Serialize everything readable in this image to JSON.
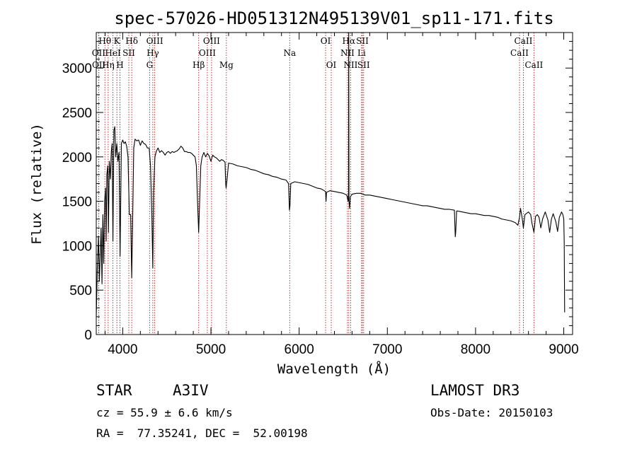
{
  "chart_data": {
    "type": "line",
    "title": "spec-57026-HD051312N495139V01_sp11-171.fits",
    "xlabel": "Wavelength (Å)",
    "ylabel": "Flux (relative)",
    "xlim": [
      3700,
      9100
    ],
    "ylim": [
      0,
      3400
    ],
    "xticks": [
      4000,
      5000,
      6000,
      7000,
      8000,
      9000
    ],
    "xtick_labels": [
      "4000",
      "5000",
      "6000",
      "7000",
      "8000",
      "9000"
    ],
    "yticks": [
      0,
      500,
      1000,
      1500,
      2000,
      2500,
      3000
    ],
    "ytick_labels": [
      "0",
      "500",
      "1000",
      "1500",
      "2000",
      "2500",
      "3000"
    ],
    "x_minor_step": 200,
    "y_minor_step": 100,
    "line_color": "#000000",
    "marker_color": "#b22222",
    "series": [
      {
        "name": "spectrum",
        "points": [
          [
            3700,
            200
          ],
          [
            3712,
            750
          ],
          [
            3725,
            1100
          ],
          [
            3735,
            600
          ],
          [
            3745,
            900
          ],
          [
            3755,
            1200
          ],
          [
            3765,
            570
          ],
          [
            3775,
            1350
          ],
          [
            3785,
            800
          ],
          [
            3795,
            1500
          ],
          [
            3805,
            1650
          ],
          [
            3812,
            1050
          ],
          [
            3820,
            1800
          ],
          [
            3830,
            1900
          ],
          [
            3838,
            1150
          ],
          [
            3848,
            1950
          ],
          [
            3860,
            1750
          ],
          [
            3870,
            2050
          ],
          [
            3880,
            2150
          ],
          [
            3889,
            1050
          ],
          [
            3900,
            2300
          ],
          [
            3910,
            2340
          ],
          [
            3920,
            2000
          ],
          [
            3933,
            2150
          ],
          [
            3945,
            1950
          ],
          [
            3958,
            2050
          ],
          [
            3970,
            880
          ],
          [
            3985,
            2150
          ],
          [
            4000,
            2190
          ],
          [
            4015,
            2150
          ],
          [
            4030,
            2170
          ],
          [
            4045,
            2120
          ],
          [
            4060,
            2000
          ],
          [
            4075,
            1350
          ],
          [
            4090,
            1350
          ],
          [
            4102,
            640
          ],
          [
            4112,
            1250
          ],
          [
            4125,
            2100
          ],
          [
            4140,
            2200
          ],
          [
            4160,
            2180
          ],
          [
            4180,
            2190
          ],
          [
            4200,
            2130
          ],
          [
            4220,
            2180
          ],
          [
            4240,
            2150
          ],
          [
            4260,
            2140
          ],
          [
            4280,
            2100
          ],
          [
            4300,
            2100
          ],
          [
            4315,
            1900
          ],
          [
            4330,
            1350
          ],
          [
            4341,
            750
          ],
          [
            4350,
            1600
          ],
          [
            4365,
            2000
          ],
          [
            4380,
            2060
          ],
          [
            4400,
            2100
          ],
          [
            4420,
            2050
          ],
          [
            4440,
            2070
          ],
          [
            4460,
            2050
          ],
          [
            4480,
            2020
          ],
          [
            4500,
            2050
          ],
          [
            4520,
            2060
          ],
          [
            4540,
            2040
          ],
          [
            4560,
            2060
          ],
          [
            4580,
            2050
          ],
          [
            4600,
            2060
          ],
          [
            4620,
            2070
          ],
          [
            4640,
            2090
          ],
          [
            4660,
            2120
          ],
          [
            4680,
            2100
          ],
          [
            4700,
            2060
          ],
          [
            4720,
            2060
          ],
          [
            4740,
            2050
          ],
          [
            4760,
            2050
          ],
          [
            4780,
            2040
          ],
          [
            4800,
            2020
          ],
          [
            4820,
            2000
          ],
          [
            4835,
            1900
          ],
          [
            4848,
            1500
          ],
          [
            4861,
            1150
          ],
          [
            4872,
            1500
          ],
          [
            4885,
            1900
          ],
          [
            4900,
            2000
          ],
          [
            4920,
            2050
          ],
          [
            4940,
            2000
          ],
          [
            4960,
            2040
          ],
          [
            4980,
            2010
          ],
          [
            5000,
            1950
          ],
          [
            5020,
            2020
          ],
          [
            5040,
            2000
          ],
          [
            5060,
            1990
          ],
          [
            5080,
            1970
          ],
          [
            5100,
            1950
          ],
          [
            5120,
            1970
          ],
          [
            5140,
            1960
          ],
          [
            5160,
            1940
          ],
          [
            5167,
            1700
          ],
          [
            5172,
            1650
          ],
          [
            5183,
            1750
          ],
          [
            5200,
            1930
          ],
          [
            5250,
            1920
          ],
          [
            5300,
            1900
          ],
          [
            5350,
            1890
          ],
          [
            5400,
            1880
          ],
          [
            5450,
            1860
          ],
          [
            5500,
            1850
          ],
          [
            5550,
            1830
          ],
          [
            5600,
            1810
          ],
          [
            5650,
            1800
          ],
          [
            5700,
            1780
          ],
          [
            5750,
            1770
          ],
          [
            5800,
            1750
          ],
          [
            5850,
            1740
          ],
          [
            5880,
            1700
          ],
          [
            5890,
            1400
          ],
          [
            5896,
            1450
          ],
          [
            5905,
            1700
          ],
          [
            5950,
            1720
          ],
          [
            6000,
            1710
          ],
          [
            6050,
            1700
          ],
          [
            6100,
            1690
          ],
          [
            6150,
            1670
          ],
          [
            6200,
            1650
          ],
          [
            6250,
            1640
          ],
          [
            6300,
            1610
          ],
          [
            6305,
            1500
          ],
          [
            6310,
            1600
          ],
          [
            6350,
            1620
          ],
          [
            6400,
            1610
          ],
          [
            6450,
            1600
          ],
          [
            6500,
            1590
          ],
          [
            6540,
            1570
          ],
          [
            6555,
            1500
          ],
          [
            6560,
            1600
          ],
          [
            6562,
            3400
          ],
          [
            6565,
            1500
          ],
          [
            6572,
            1420
          ],
          [
            6580,
            1550
          ],
          [
            6600,
            1580
          ],
          [
            6650,
            1590
          ],
          [
            6700,
            1590
          ],
          [
            6750,
            1570
          ],
          [
            6800,
            1570
          ],
          [
            6850,
            1560
          ],
          [
            6900,
            1550
          ],
          [
            6950,
            1540
          ],
          [
            7000,
            1530
          ],
          [
            7050,
            1520
          ],
          [
            7100,
            1510
          ],
          [
            7150,
            1500
          ],
          [
            7200,
            1490
          ],
          [
            7250,
            1480
          ],
          [
            7300,
            1470
          ],
          [
            7350,
            1460
          ],
          [
            7400,
            1450
          ],
          [
            7450,
            1450
          ],
          [
            7500,
            1440
          ],
          [
            7550,
            1430
          ],
          [
            7600,
            1420
          ],
          [
            7650,
            1410
          ],
          [
            7700,
            1410
          ],
          [
            7760,
            1400
          ],
          [
            7770,
            1100
          ],
          [
            7775,
            1150
          ],
          [
            7785,
            1390
          ],
          [
            7800,
            1390
          ],
          [
            7850,
            1380
          ],
          [
            7900,
            1370
          ],
          [
            7950,
            1360
          ],
          [
            8000,
            1360
          ],
          [
            8050,
            1350
          ],
          [
            8100,
            1340
          ],
          [
            8150,
            1340
          ],
          [
            8200,
            1330
          ],
          [
            8250,
            1320
          ],
          [
            8300,
            1300
          ],
          [
            8350,
            1290
          ],
          [
            8400,
            1280
          ],
          [
            8450,
            1260
          ],
          [
            8480,
            1230
          ],
          [
            8498,
            1320
          ],
          [
            8510,
            1420
          ],
          [
            8530,
            1300
          ],
          [
            8542,
            1200
          ],
          [
            8560,
            1350
          ],
          [
            8600,
            1380
          ],
          [
            8625,
            1350
          ],
          [
            8640,
            1250
          ],
          [
            8662,
            1150
          ],
          [
            8680,
            1330
          ],
          [
            8700,
            1350
          ],
          [
            8720,
            1320
          ],
          [
            8740,
            1200
          ],
          [
            8760,
            1300
          ],
          [
            8790,
            1380
          ],
          [
            8820,
            1290
          ],
          [
            8840,
            1150
          ],
          [
            8860,
            1300
          ],
          [
            8880,
            1360
          ],
          [
            8910,
            1270
          ],
          [
            8930,
            1160
          ],
          [
            8950,
            1320
          ],
          [
            8975,
            1380
          ],
          [
            8990,
            1350
          ],
          [
            9000,
            1300
          ],
          [
            9005,
            1050
          ],
          [
            9010,
            250
          ]
        ]
      }
    ],
    "annotations": [
      {
        "label": "Hθ",
        "x": 3798,
        "row": 1
      },
      {
        "label": "OII",
        "x": 3727,
        "row": 2
      },
      {
        "label": "OII",
        "x": 3729,
        "row": 3
      },
      {
        "label": "Hη",
        "x": 3835,
        "row": 3
      },
      {
        "label": "HeI",
        "x": 3889,
        "row": 2
      },
      {
        "label": "K",
        "x": 3934,
        "row": 1
      },
      {
        "label": "SII",
        "x": 4069,
        "row": 2
      },
      {
        "label": "H",
        "x": 3969,
        "row": 3
      },
      {
        "label": "Hδ",
        "x": 4102,
        "row": 1
      },
      {
        "label": "OIII",
        "x": 4363,
        "row": 1
      },
      {
        "label": "Hγ",
        "x": 4341,
        "row": 2
      },
      {
        "label": "G",
        "x": 4305,
        "row": 3
      },
      {
        "label": "Hβ",
        "x": 4861,
        "row": 3
      },
      {
        "label": "OIII",
        "x": 5007,
        "row": 1
      },
      {
        "label": "OIII",
        "x": 4959,
        "row": 2
      },
      {
        "label": "Mg",
        "x": 5175,
        "row": 3
      },
      {
        "label": "Na",
        "x": 5893,
        "row": 2
      },
      {
        "label": "OI",
        "x": 6300,
        "row": 1
      },
      {
        "label": "OI",
        "x": 6364,
        "row": 3
      },
      {
        "label": "Hα",
        "x": 6563,
        "row": 1
      },
      {
        "label": "SII",
        "x": 6717,
        "row": 1
      },
      {
        "label": "NII",
        "x": 6548,
        "row": 2
      },
      {
        "label": "Li",
        "x": 6708,
        "row": 2
      },
      {
        "label": "NII",
        "x": 6584,
        "row": 3
      },
      {
        "label": "SII",
        "x": 6731,
        "row": 3
      },
      {
        "label": "CaII",
        "x": 8542,
        "row": 1
      },
      {
        "label": "CaII",
        "x": 8498,
        "row": 2
      },
      {
        "label": "CaII",
        "x": 8662,
        "row": 3
      }
    ]
  },
  "info": {
    "object_type": "STAR",
    "subclass": "A3IV",
    "survey": "LAMOST DR3",
    "cz": "cz = 55.9 ± 6.6 km/s",
    "obs_date": "Obs-Date: 20150103",
    "coords": "RA =  77.35241, DEC =  52.00198"
  }
}
